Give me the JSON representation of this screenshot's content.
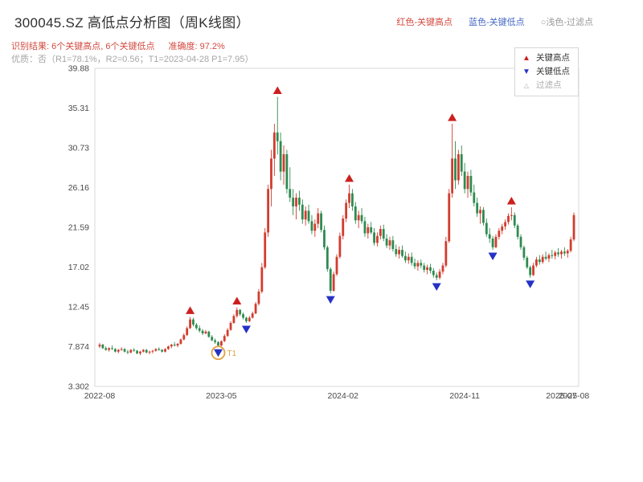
{
  "header": {
    "title": "300045.SZ 高低点分析图（周K线图）",
    "legend_red": "红色-关键高点",
    "legend_blue": "蓝色-关键低点",
    "legend_filter": "○浅色-过滤点",
    "result_line": "识别结果: 6个关键高点, 6个关键低点",
    "accuracy": "准确度: 97.2%",
    "quality_line": "优质：否（R1=78.1%，R2=0.56；T1=2023-04-28 P1=7.95）"
  },
  "chart_data": {
    "type": "candlestick",
    "title": "300045.SZ 高低点分析图（周K线图）",
    "ylim": [
      3.302,
      39.88
    ],
    "y_ticks": [
      "39.88",
      "35.31",
      "30.73",
      "26.16",
      "21.59",
      "17.02",
      "12.45",
      "7.874",
      "3.302"
    ],
    "x_ticks": [
      {
        "label": "2022-08",
        "week": 0
      },
      {
        "label": "2023-05",
        "week": 39
      },
      {
        "label": "2024-02",
        "week": 78
      },
      {
        "label": "2024-11",
        "week": 117
      },
      {
        "label": "2025-07",
        "week": 148
      },
      {
        "label": "2025-08",
        "week": 152
      }
    ],
    "legend": {
      "high": "关键高点",
      "low": "关键低点",
      "filter": "过滤点"
    },
    "colors": {
      "up": "#d23c2e",
      "down": "#2e8b50",
      "key_high": "#cc1f1f",
      "key_low": "#2531c4",
      "filter": "#aaaaaa",
      "t1": "#e2a13e"
    },
    "key_highs": [
      {
        "week": 29,
        "price": 11.3
      },
      {
        "week": 44,
        "price": 12.4
      },
      {
        "week": 57,
        "price": 36.6
      },
      {
        "week": 80,
        "price": 26.5
      },
      {
        "week": 113,
        "price": 33.5
      },
      {
        "week": 132,
        "price": 23.9
      }
    ],
    "key_lows": [
      {
        "week": 38,
        "price": 7.9
      },
      {
        "week": 47,
        "price": 10.6
      },
      {
        "week": 74,
        "price": 14.0
      },
      {
        "week": 108,
        "price": 15.5
      },
      {
        "week": 126,
        "price": 19.0
      },
      {
        "week": 138,
        "price": 15.8
      }
    ],
    "t1": {
      "week": 38,
      "price": 7.9,
      "label": "T1"
    },
    "candles": [
      [
        7.9,
        8.3,
        7.7,
        8.1
      ],
      [
        8.1,
        8.2,
        7.6,
        7.7
      ],
      [
        7.7,
        7.9,
        7.4,
        7.5
      ],
      [
        7.5,
        7.8,
        7.3,
        7.7
      ],
      [
        7.7,
        8.0,
        7.5,
        7.6
      ],
      [
        7.6,
        7.7,
        7.2,
        7.3
      ],
      [
        7.3,
        7.6,
        7.1,
        7.5
      ],
      [
        7.5,
        7.8,
        7.4,
        7.6
      ],
      [
        7.6,
        7.7,
        7.2,
        7.3
      ],
      [
        7.3,
        7.5,
        7.0,
        7.2
      ],
      [
        7.2,
        7.6,
        7.1,
        7.5
      ],
      [
        7.5,
        7.7,
        7.3,
        7.4
      ],
      [
        7.4,
        7.5,
        7.0,
        7.1
      ],
      [
        7.1,
        7.4,
        6.9,
        7.3
      ],
      [
        7.3,
        7.6,
        7.2,
        7.5
      ],
      [
        7.5,
        7.6,
        7.1,
        7.2
      ],
      [
        7.2,
        7.4,
        7.0,
        7.3
      ],
      [
        7.3,
        7.5,
        7.1,
        7.4
      ],
      [
        7.4,
        7.7,
        7.3,
        7.6
      ],
      [
        7.6,
        7.8,
        7.4,
        7.5
      ],
      [
        7.5,
        7.6,
        7.2,
        7.3
      ],
      [
        7.3,
        7.7,
        7.2,
        7.6
      ],
      [
        7.6,
        8.0,
        7.5,
        7.9
      ],
      [
        7.9,
        8.2,
        7.7,
        8.1
      ],
      [
        8.1,
        8.4,
        7.9,
        8.0
      ],
      [
        8.0,
        8.3,
        7.8,
        8.2
      ],
      [
        8.2,
        8.8,
        8.1,
        8.7
      ],
      [
        8.7,
        9.4,
        8.6,
        9.2
      ],
      [
        9.2,
        10.2,
        9.1,
        10.0
      ],
      [
        10.0,
        11.3,
        9.9,
        11.0
      ],
      [
        11.0,
        11.2,
        10.2,
        10.4
      ],
      [
        10.4,
        10.6,
        9.8,
        10.0
      ],
      [
        10.0,
        10.3,
        9.5,
        9.7
      ],
      [
        9.7,
        9.9,
        9.2,
        9.4
      ],
      [
        9.4,
        9.8,
        9.3,
        9.6
      ],
      [
        9.6,
        9.7,
        8.9,
        9.0
      ],
      [
        9.0,
        9.2,
        8.5,
        8.6
      ],
      [
        8.6,
        8.8,
        8.2,
        8.4
      ],
      [
        8.4,
        8.5,
        7.9,
        8.0
      ],
      [
        8.0,
        8.6,
        7.9,
        8.5
      ],
      [
        8.5,
        9.3,
        8.4,
        9.1
      ],
      [
        9.1,
        10.0,
        9.0,
        9.8
      ],
      [
        9.8,
        10.8,
        9.7,
        10.6
      ],
      [
        10.6,
        11.6,
        10.5,
        11.4
      ],
      [
        11.4,
        12.4,
        11.2,
        12.1
      ],
      [
        12.1,
        12.2,
        11.4,
        11.6
      ],
      [
        11.6,
        11.8,
        11.0,
        11.2
      ],
      [
        11.2,
        11.3,
        10.6,
        10.8
      ],
      [
        10.8,
        11.4,
        10.7,
        11.2
      ],
      [
        11.2,
        11.9,
        11.1,
        11.7
      ],
      [
        11.7,
        13.0,
        11.6,
        12.8
      ],
      [
        12.8,
        14.5,
        12.6,
        14.2
      ],
      [
        14.2,
        17.5,
        14.0,
        17.0
      ],
      [
        17.0,
        21.5,
        16.8,
        21.0
      ],
      [
        21.0,
        26.5,
        20.5,
        26.0
      ],
      [
        26.0,
        30.5,
        24.0,
        29.5
      ],
      [
        29.5,
        33.5,
        27.5,
        32.5
      ],
      [
        32.5,
        36.6,
        30.0,
        31.5
      ],
      [
        31.5,
        32.5,
        27.0,
        28.0
      ],
      [
        28.0,
        31.0,
        26.5,
        30.0
      ],
      [
        30.0,
        30.5,
        25.5,
        26.0
      ],
      [
        26.0,
        28.5,
        24.5,
        25.0
      ],
      [
        25.0,
        26.0,
        23.0,
        24.0
      ],
      [
        24.0,
        25.5,
        22.5,
        25.0
      ],
      [
        25.0,
        25.8,
        23.5,
        24.2
      ],
      [
        24.2,
        24.8,
        22.0,
        22.5
      ],
      [
        22.5,
        24.0,
        21.8,
        23.5
      ],
      [
        23.5,
        24.2,
        22.0,
        22.3
      ],
      [
        22.3,
        23.0,
        20.8,
        21.2
      ],
      [
        21.2,
        22.5,
        20.5,
        22.0
      ],
      [
        22.0,
        23.8,
        21.5,
        23.2
      ],
      [
        23.2,
        23.5,
        21.0,
        21.3
      ],
      [
        21.3,
        21.8,
        19.0,
        19.3
      ],
      [
        19.3,
        19.5,
        16.5,
        16.8
      ],
      [
        16.8,
        17.0,
        14.0,
        14.3
      ],
      [
        14.3,
        16.5,
        14.2,
        16.2
      ],
      [
        16.2,
        18.5,
        16.0,
        18.2
      ],
      [
        18.2,
        21.0,
        18.0,
        20.6
      ],
      [
        20.6,
        23.0,
        20.2,
        22.6
      ],
      [
        22.6,
        24.8,
        22.2,
        24.4
      ],
      [
        24.4,
        26.5,
        23.8,
        25.5
      ],
      [
        25.5,
        26.0,
        23.5,
        24.0
      ],
      [
        24.0,
        24.5,
        22.0,
        22.4
      ],
      [
        22.4,
        23.5,
        21.5,
        23.0
      ],
      [
        23.0,
        23.8,
        22.0,
        22.3
      ],
      [
        22.3,
        22.8,
        20.5,
        20.9
      ],
      [
        20.9,
        22.0,
        20.3,
        21.6
      ],
      [
        21.6,
        22.2,
        20.8,
        21.0
      ],
      [
        21.0,
        21.5,
        19.5,
        19.8
      ],
      [
        19.8,
        21.0,
        19.4,
        20.6
      ],
      [
        20.6,
        21.8,
        20.2,
        21.4
      ],
      [
        21.4,
        21.9,
        20.0,
        20.3
      ],
      [
        20.3,
        20.8,
        19.2,
        19.5
      ],
      [
        19.5,
        20.5,
        19.0,
        20.1
      ],
      [
        20.1,
        20.6,
        18.8,
        19.1
      ],
      [
        19.1,
        19.6,
        18.2,
        18.5
      ],
      [
        18.5,
        19.4,
        18.0,
        19.0
      ],
      [
        19.0,
        19.5,
        18.1,
        18.3
      ],
      [
        18.3,
        18.8,
        17.5,
        17.8
      ],
      [
        17.8,
        18.6,
        17.4,
        18.2
      ],
      [
        18.2,
        18.7,
        17.2,
        17.5
      ],
      [
        17.5,
        18.0,
        16.8,
        17.1
      ],
      [
        17.1,
        17.8,
        16.6,
        17.5
      ],
      [
        17.5,
        17.9,
        16.9,
        17.2
      ],
      [
        17.2,
        17.5,
        16.4,
        16.7
      ],
      [
        16.7,
        17.3,
        16.2,
        17.0
      ],
      [
        17.0,
        17.4,
        16.3,
        16.6
      ],
      [
        16.6,
        16.9,
        15.8,
        16.1
      ],
      [
        16.1,
        16.4,
        15.5,
        15.8
      ],
      [
        15.8,
        16.8,
        15.6,
        16.5
      ],
      [
        16.5,
        17.5,
        16.2,
        17.2
      ],
      [
        17.2,
        20.5,
        17.0,
        20.0
      ],
      [
        20.0,
        26.0,
        19.8,
        25.5
      ],
      [
        25.5,
        33.5,
        25.0,
        29.5
      ],
      [
        29.5,
        31.5,
        26.0,
        27.0
      ],
      [
        27.0,
        30.5,
        26.5,
        30.0
      ],
      [
        30.0,
        31.0,
        27.5,
        28.0
      ],
      [
        28.0,
        29.0,
        25.5,
        26.0
      ],
      [
        26.0,
        28.0,
        25.0,
        27.5
      ],
      [
        27.5,
        28.2,
        25.2,
        25.6
      ],
      [
        25.6,
        26.5,
        24.0,
        24.4
      ],
      [
        24.4,
        25.0,
        22.8,
        23.2
      ],
      [
        23.2,
        24.0,
        22.0,
        23.6
      ],
      [
        23.6,
        23.9,
        21.8,
        22.1
      ],
      [
        22.1,
        22.6,
        20.5,
        20.8
      ],
      [
        20.8,
        21.5,
        19.8,
        20.3
      ],
      [
        20.3,
        20.6,
        19.0,
        19.3
      ],
      [
        19.3,
        20.8,
        19.2,
        20.5
      ],
      [
        20.5,
        21.5,
        20.2,
        21.2
      ],
      [
        21.2,
        22.0,
        20.8,
        21.7
      ],
      [
        21.7,
        22.5,
        21.3,
        22.2
      ],
      [
        22.2,
        23.2,
        21.9,
        22.9
      ],
      [
        22.9,
        23.9,
        22.4,
        23.0
      ],
      [
        23.0,
        23.3,
        21.5,
        21.8
      ],
      [
        21.8,
        22.0,
        20.2,
        20.5
      ],
      [
        20.5,
        20.8,
        19.0,
        19.3
      ],
      [
        19.3,
        19.5,
        17.8,
        18.1
      ],
      [
        18.1,
        18.3,
        16.8,
        17.0
      ],
      [
        17.0,
        17.2,
        15.8,
        16.1
      ],
      [
        16.1,
        17.5,
        16.0,
        17.2
      ],
      [
        17.2,
        18.2,
        17.0,
        17.9
      ],
      [
        17.9,
        18.4,
        17.3,
        17.6
      ],
      [
        17.6,
        18.5,
        17.4,
        18.2
      ],
      [
        18.2,
        18.8,
        17.8,
        18.0
      ],
      [
        18.0,
        18.6,
        17.6,
        18.4
      ],
      [
        18.4,
        19.0,
        18.0,
        18.3
      ],
      [
        18.3,
        18.9,
        17.9,
        18.7
      ],
      [
        18.7,
        19.2,
        18.2,
        18.5
      ],
      [
        18.5,
        19.0,
        18.0,
        18.8
      ],
      [
        18.8,
        19.3,
        18.3,
        18.6
      ],
      [
        18.6,
        19.1,
        18.1,
        18.9
      ],
      [
        18.9,
        20.5,
        18.7,
        20.2
      ],
      [
        20.2,
        23.3,
        20.0,
        23.0
      ]
    ]
  }
}
